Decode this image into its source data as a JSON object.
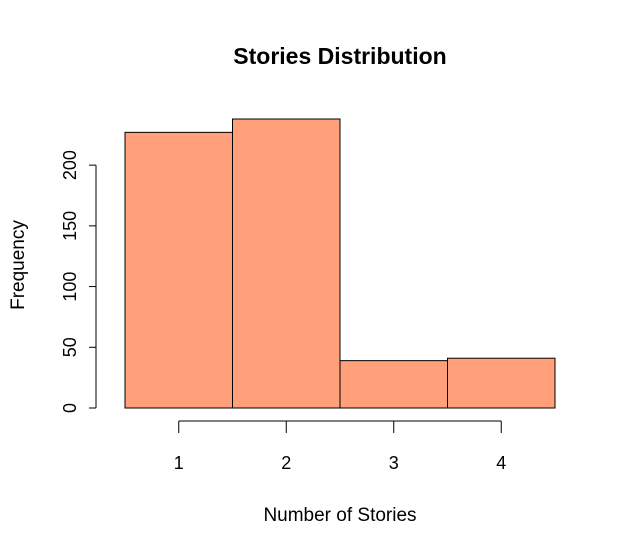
{
  "chart_data": {
    "type": "bar",
    "title": "Stories Distribution",
    "xlabel": "Number of Stories",
    "ylabel": "Frequency",
    "categories": [
      "1",
      "2",
      "3",
      "4"
    ],
    "values": [
      227,
      238,
      39,
      41
    ],
    "x_ticks": [
      1,
      2,
      3,
      4
    ],
    "y_ticks": [
      0,
      50,
      100,
      150,
      200
    ],
    "ylim": [
      0,
      238
    ],
    "grid": false,
    "bar_color": "#FFA07A"
  }
}
